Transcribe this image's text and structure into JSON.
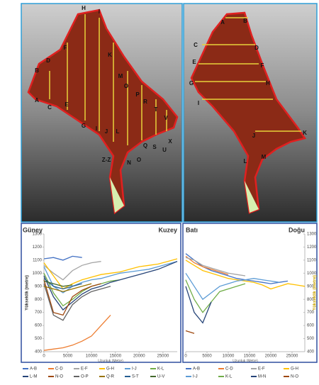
{
  "maps": [
    {
      "labels": [
        "H",
        "I",
        "F",
        "K",
        "D",
        "B",
        "M",
        "O",
        "P",
        "R",
        "T",
        "V",
        "A",
        "C",
        "E",
        "G",
        "I",
        "J",
        "L",
        "Q",
        "S",
        "U",
        "X",
        "N",
        "O",
        "Z-Z"
      ]
    },
    {
      "labels": [
        "A",
        "B",
        "C",
        "D",
        "E",
        "F",
        "G",
        "H",
        "I",
        "J",
        "K",
        "L",
        "M"
      ]
    }
  ],
  "chart_data": [
    {
      "type": "line",
      "title": "Güney",
      "subtitle": "Kuzey",
      "x_label": "Uzunluk (Metre)",
      "y_label": "Yükseklik (metre)",
      "xlim": [
        0,
        28000
      ],
      "xticks": [
        0,
        5000,
        10000,
        15000,
        20000,
        25000
      ],
      "ylim": [
        400,
        1300
      ],
      "yticks": [
        400,
        500,
        600,
        700,
        800,
        900,
        1000,
        1100,
        1200,
        1300
      ],
      "grid": false,
      "x": [
        0,
        2000,
        4000,
        6000,
        8000,
        10000,
        12000,
        14000,
        16000,
        18000,
        20000,
        22000,
        24000,
        26000,
        28000
      ],
      "series": [
        {
          "name": "A-B",
          "color": "#4472c4",
          "values": [
            1110,
            1120,
            1100,
            1130,
            1120,
            null,
            null,
            null,
            null,
            null,
            null,
            null,
            null,
            null,
            null
          ]
        },
        {
          "name": "C-D",
          "color": "#ed7d31",
          "values": [
            410,
            420,
            430,
            450,
            480,
            520,
            600,
            680,
            null,
            null,
            null,
            null,
            null,
            null,
            null
          ]
        },
        {
          "name": "E-F",
          "color": "#a5a5a5",
          "values": [
            1060,
            1000,
            950,
            1020,
            1060,
            1080,
            1090,
            null,
            null,
            null,
            null,
            null,
            null,
            null,
            null
          ]
        },
        {
          "name": "G-H",
          "color": "#ffc000",
          "values": [
            1080,
            980,
            880,
            920,
            950,
            970,
            990,
            1000,
            1010,
            1030,
            1050,
            1060,
            1070,
            1090,
            1110
          ]
        },
        {
          "name": "I-J",
          "color": "#5b9bd5",
          "values": [
            1050,
            900,
            850,
            900,
            930,
            950,
            960,
            980,
            1000,
            1010,
            1020,
            1030,
            1050,
            1070,
            1090
          ]
        },
        {
          "name": "K-L",
          "color": "#70ad47",
          "values": [
            1000,
            850,
            750,
            800,
            860,
            900,
            920,
            940,
            950,
            null,
            null,
            null,
            null,
            null,
            null
          ]
        },
        {
          "name": "L-M",
          "color": "#264478",
          "values": [
            980,
            820,
            720,
            780,
            840,
            880,
            900,
            930,
            950,
            970,
            990,
            1010,
            1030,
            1060,
            1090
          ]
        },
        {
          "name": "N-O",
          "color": "#9e480e",
          "values": [
            950,
            700,
            680,
            820,
            870,
            900,
            920,
            null,
            null,
            null,
            null,
            null,
            null,
            null,
            null
          ]
        },
        {
          "name": "O-P",
          "color": "#636363",
          "values": [
            920,
            680,
            640,
            760,
            820,
            860,
            880,
            900,
            null,
            null,
            null,
            null,
            null,
            null,
            null
          ]
        },
        {
          "name": "Q-R",
          "color": "#997300",
          "values": [
            900,
            880,
            860,
            880,
            900,
            920,
            null,
            null,
            null,
            null,
            null,
            null,
            null,
            null,
            null
          ]
        },
        {
          "name": "S-T",
          "color": "#255e91",
          "values": [
            960,
            900,
            880,
            900,
            920,
            null,
            null,
            null,
            null,
            null,
            null,
            null,
            null,
            null,
            null
          ]
        },
        {
          "name": "U-V",
          "color": "#43682b",
          "values": [
            940,
            920,
            900,
            910,
            null,
            null,
            null,
            null,
            null,
            null,
            null,
            null,
            null,
            null,
            null
          ]
        }
      ]
    },
    {
      "type": "line",
      "title": "Batı",
      "subtitle": "Doğu",
      "x_label": "Uzunluk (Metre)",
      "y_label": "Yükseklik (metre)",
      "xlim": [
        0,
        28000
      ],
      "xticks": [
        0,
        5000,
        10000,
        15000,
        20000,
        25000
      ],
      "ylim": [
        400,
        1300
      ],
      "yticks": [
        400,
        500,
        600,
        700,
        800,
        900,
        1000,
        1100,
        1200,
        1300
      ],
      "grid": false,
      "x": [
        0,
        2000,
        4000,
        6000,
        8000,
        10000,
        12000,
        14000,
        16000,
        18000,
        20000,
        22000,
        24000,
        26000,
        28000
      ],
      "series": [
        {
          "name": "A-B",
          "color": "#4472c4",
          "values": [
            1150,
            1100,
            1050,
            1020,
            1000,
            980,
            960,
            950,
            940,
            930,
            920,
            930,
            940,
            null,
            null
          ]
        },
        {
          "name": "C-D",
          "color": "#ed7d31",
          "values": [
            1130,
            1080,
            1050,
            1030,
            1010,
            990,
            null,
            null,
            null,
            null,
            null,
            null,
            null,
            null,
            null
          ]
        },
        {
          "name": "E-F",
          "color": "#a5a5a5",
          "values": [
            1120,
            1100,
            1060,
            1040,
            1020,
            1000,
            990,
            980,
            null,
            null,
            null,
            null,
            null,
            null,
            null
          ]
        },
        {
          "name": "G-H",
          "color": "#ffc000",
          "values": [
            1100,
            1060,
            1020,
            1000,
            980,
            960,
            950,
            940,
            930,
            910,
            880,
            900,
            920,
            910,
            900
          ]
        },
        {
          "name": "I-J",
          "color": "#5b9bd5",
          "values": [
            1000,
            900,
            800,
            850,
            900,
            920,
            940,
            950,
            960,
            950,
            940,
            930,
            null,
            null,
            null
          ]
        },
        {
          "name": "K-L",
          "color": "#70ad47",
          "values": [
            950,
            800,
            700,
            780,
            860,
            880,
            900,
            920,
            null,
            null,
            null,
            null,
            null,
            null,
            null
          ]
        },
        {
          "name": "M-N",
          "color": "#264478",
          "values": [
            900,
            700,
            620,
            780,
            null,
            null,
            null,
            null,
            null,
            null,
            null,
            null,
            null,
            null,
            null
          ]
        },
        {
          "name": "N-O",
          "color": "#9e480e",
          "values": [
            560,
            540,
            null,
            null,
            null,
            null,
            null,
            null,
            null,
            null,
            null,
            null,
            null,
            null,
            null
          ]
        }
      ]
    }
  ]
}
